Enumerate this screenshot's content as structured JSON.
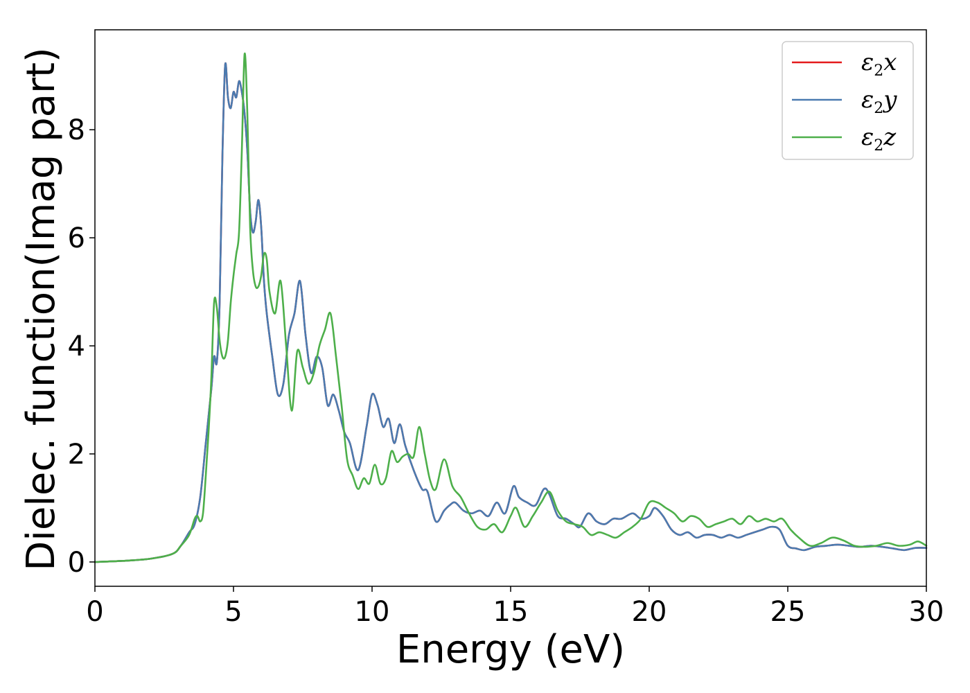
{
  "chart_data": {
    "type": "line",
    "xlabel": "Energy (eV)",
    "ylabel": "Dielec. function(Imag part)",
    "xlim": [
      0,
      30
    ],
    "ylim": [
      -0.45,
      9.85
    ],
    "x_ticks": [
      0,
      5,
      10,
      15,
      20,
      25,
      30
    ],
    "x_tick_labels": [
      "0",
      "5",
      "10",
      "15",
      "20",
      "25",
      "30"
    ],
    "y_ticks": [
      0,
      2,
      4,
      6,
      8
    ],
    "y_tick_labels": [
      "0",
      "2",
      "4",
      "6",
      "8"
    ],
    "grid": false,
    "legend_position": "top-right",
    "series": [
      {
        "name": "ε2x",
        "legend_base": "ε",
        "legend_sub": "2",
        "legend_tail": "x",
        "color": "#e41a1c",
        "x": [
          0,
          1,
          2,
          2.8,
          3.1,
          3.4,
          3.6,
          3.8,
          4.0,
          4.2,
          4.3,
          4.4,
          4.5,
          4.6,
          4.7,
          4.8,
          4.9,
          5.0,
          5.1,
          5.2,
          5.3,
          5.4,
          5.5,
          5.6,
          5.7,
          5.8,
          5.9,
          6.0,
          6.1,
          6.2,
          6.4,
          6.6,
          6.8,
          7.0,
          7.2,
          7.4,
          7.6,
          7.8,
          8.0,
          8.2,
          8.4,
          8.6,
          8.8,
          9.0,
          9.2,
          9.5,
          9.8,
          10.0,
          10.2,
          10.4,
          10.6,
          10.8,
          11.0,
          11.2,
          11.5,
          11.8,
          12.0,
          12.3,
          12.6,
          12.8,
          13.0,
          13.3,
          13.6,
          13.9,
          14.2,
          14.5,
          14.8,
          15.1,
          15.3,
          15.6,
          15.9,
          16.2,
          16.4,
          16.7,
          17.0,
          17.3,
          17.5,
          17.8,
          18.1,
          18.4,
          18.7,
          19.0,
          19.4,
          19.7,
          20.0,
          20.2,
          20.5,
          20.8,
          21.1,
          21.4,
          21.7,
          22.0,
          22.3,
          22.6,
          22.9,
          23.2,
          23.5,
          23.8,
          24.1,
          24.4,
          24.7,
          25.0,
          25.3,
          25.6,
          26.0,
          26.4,
          26.8,
          27.2,
          27.6,
          28.0,
          28.4,
          28.8,
          29.2,
          29.6,
          30.0
        ],
        "y": [
          0.0,
          0.02,
          0.06,
          0.15,
          0.3,
          0.55,
          0.7,
          1.2,
          2.2,
          3.2,
          3.8,
          3.7,
          4.8,
          7.5,
          9.2,
          8.6,
          8.4,
          8.7,
          8.6,
          8.9,
          8.7,
          8.3,
          7.6,
          6.5,
          6.1,
          6.3,
          6.7,
          6.2,
          5.2,
          4.6,
          3.8,
          3.1,
          3.3,
          4.2,
          4.6,
          5.2,
          4.2,
          3.5,
          3.8,
          3.6,
          2.9,
          3.1,
          2.8,
          2.4,
          2.2,
          1.7,
          2.5,
          3.1,
          2.9,
          2.5,
          2.65,
          2.2,
          2.55,
          2.15,
          1.7,
          1.35,
          1.3,
          0.75,
          0.95,
          1.05,
          1.1,
          0.95,
          0.9,
          0.95,
          0.85,
          1.1,
          0.9,
          1.4,
          1.2,
          1.1,
          1.05,
          1.35,
          1.25,
          0.85,
          0.8,
          0.7,
          0.65,
          0.9,
          0.75,
          0.7,
          0.8,
          0.8,
          0.9,
          0.8,
          0.85,
          1.0,
          0.85,
          0.6,
          0.5,
          0.55,
          0.45,
          0.5,
          0.5,
          0.45,
          0.5,
          0.45,
          0.5,
          0.55,
          0.6,
          0.65,
          0.6,
          0.3,
          0.25,
          0.22,
          0.28,
          0.3,
          0.32,
          0.3,
          0.28,
          0.3,
          0.28,
          0.25,
          0.22,
          0.26,
          0.26
        ]
      },
      {
        "name": "ε2y",
        "legend_base": "ε",
        "legend_sub": "2",
        "legend_tail": "y",
        "color": "#4a7bb0",
        "x": [
          0,
          1,
          2,
          2.8,
          3.1,
          3.4,
          3.6,
          3.8,
          4.0,
          4.2,
          4.3,
          4.4,
          4.5,
          4.6,
          4.7,
          4.8,
          4.9,
          5.0,
          5.1,
          5.2,
          5.3,
          5.4,
          5.5,
          5.6,
          5.7,
          5.8,
          5.9,
          6.0,
          6.1,
          6.2,
          6.4,
          6.6,
          6.8,
          7.0,
          7.2,
          7.4,
          7.6,
          7.8,
          8.0,
          8.2,
          8.4,
          8.6,
          8.8,
          9.0,
          9.2,
          9.5,
          9.8,
          10.0,
          10.2,
          10.4,
          10.6,
          10.8,
          11.0,
          11.2,
          11.5,
          11.8,
          12.0,
          12.3,
          12.6,
          12.8,
          13.0,
          13.3,
          13.6,
          13.9,
          14.2,
          14.5,
          14.8,
          15.1,
          15.3,
          15.6,
          15.9,
          16.2,
          16.4,
          16.7,
          17.0,
          17.3,
          17.5,
          17.8,
          18.1,
          18.4,
          18.7,
          19.0,
          19.4,
          19.7,
          20.0,
          20.2,
          20.5,
          20.8,
          21.1,
          21.4,
          21.7,
          22.0,
          22.3,
          22.6,
          22.9,
          23.2,
          23.5,
          23.8,
          24.1,
          24.4,
          24.7,
          25.0,
          25.3,
          25.6,
          26.0,
          26.4,
          26.8,
          27.2,
          27.6,
          28.0,
          28.4,
          28.8,
          29.2,
          29.6,
          30.0
        ],
        "y": [
          0.0,
          0.02,
          0.06,
          0.15,
          0.3,
          0.55,
          0.7,
          1.2,
          2.2,
          3.2,
          3.8,
          3.7,
          4.8,
          7.5,
          9.2,
          8.6,
          8.4,
          8.7,
          8.6,
          8.9,
          8.7,
          8.3,
          7.6,
          6.5,
          6.1,
          6.3,
          6.7,
          6.2,
          5.2,
          4.6,
          3.8,
          3.1,
          3.3,
          4.2,
          4.6,
          5.2,
          4.2,
          3.5,
          3.8,
          3.6,
          2.9,
          3.1,
          2.8,
          2.4,
          2.2,
          1.7,
          2.5,
          3.1,
          2.9,
          2.5,
          2.65,
          2.2,
          2.55,
          2.15,
          1.7,
          1.35,
          1.3,
          0.75,
          0.95,
          1.05,
          1.1,
          0.95,
          0.9,
          0.95,
          0.85,
          1.1,
          0.9,
          1.4,
          1.2,
          1.1,
          1.05,
          1.35,
          1.25,
          0.85,
          0.8,
          0.7,
          0.65,
          0.9,
          0.75,
          0.7,
          0.8,
          0.8,
          0.9,
          0.8,
          0.85,
          1.0,
          0.85,
          0.6,
          0.5,
          0.55,
          0.45,
          0.5,
          0.5,
          0.45,
          0.5,
          0.45,
          0.5,
          0.55,
          0.6,
          0.65,
          0.6,
          0.3,
          0.25,
          0.22,
          0.28,
          0.3,
          0.32,
          0.3,
          0.28,
          0.3,
          0.28,
          0.25,
          0.22,
          0.26,
          0.26
        ]
      },
      {
        "name": "ε2z",
        "legend_base": "ε",
        "legend_sub": "2",
        "legend_tail": "z",
        "color": "#4daf4a",
        "x": [
          0,
          1,
          2,
          2.8,
          3.1,
          3.4,
          3.6,
          3.7,
          3.8,
          3.9,
          4.0,
          4.1,
          4.2,
          4.3,
          4.4,
          4.5,
          4.6,
          4.7,
          4.8,
          4.9,
          5.0,
          5.1,
          5.2,
          5.3,
          5.4,
          5.5,
          5.6,
          5.7,
          5.8,
          5.9,
          6.0,
          6.1,
          6.2,
          6.3,
          6.5,
          6.7,
          6.9,
          7.1,
          7.3,
          7.5,
          7.7,
          7.9,
          8.1,
          8.3,
          8.5,
          8.7,
          8.9,
          9.1,
          9.3,
          9.5,
          9.7,
          9.9,
          10.1,
          10.3,
          10.5,
          10.7,
          10.9,
          11.1,
          11.3,
          11.5,
          11.7,
          11.9,
          12.1,
          12.3,
          12.6,
          12.9,
          13.2,
          13.5,
          13.8,
          14.1,
          14.4,
          14.7,
          15.0,
          15.2,
          15.5,
          15.8,
          16.1,
          16.4,
          16.7,
          17.0,
          17.3,
          17.6,
          17.9,
          18.2,
          18.5,
          18.8,
          19.1,
          19.4,
          19.7,
          20.0,
          20.3,
          20.6,
          20.9,
          21.2,
          21.5,
          21.8,
          22.1,
          22.4,
          22.7,
          23.0,
          23.3,
          23.6,
          23.9,
          24.2,
          24.5,
          24.8,
          25.1,
          25.4,
          25.8,
          26.2,
          26.6,
          27.0,
          27.4,
          27.8,
          28.2,
          28.6,
          29.0,
          29.4,
          29.7,
          30.0
        ],
        "y": [
          0.0,
          0.02,
          0.06,
          0.15,
          0.3,
          0.5,
          0.8,
          0.85,
          0.75,
          0.9,
          1.6,
          2.4,
          3.4,
          4.8,
          4.7,
          4.1,
          3.8,
          3.8,
          4.1,
          4.8,
          5.3,
          5.7,
          6.1,
          7.6,
          9.4,
          8.3,
          6.2,
          5.4,
          5.1,
          5.1,
          5.3,
          5.7,
          5.6,
          5.0,
          4.6,
          5.2,
          4.0,
          2.8,
          3.9,
          3.6,
          3.3,
          3.5,
          4.0,
          4.3,
          4.6,
          3.8,
          2.9,
          1.9,
          1.6,
          1.35,
          1.55,
          1.45,
          1.8,
          1.45,
          1.55,
          2.05,
          1.85,
          1.95,
          2.0,
          1.95,
          2.5,
          2.0,
          1.5,
          1.35,
          1.9,
          1.4,
          1.2,
          0.9,
          0.65,
          0.6,
          0.7,
          0.55,
          0.85,
          1.0,
          0.65,
          0.85,
          1.1,
          1.3,
          0.95,
          0.75,
          0.7,
          0.65,
          0.5,
          0.55,
          0.5,
          0.45,
          0.55,
          0.65,
          0.8,
          1.1,
          1.1,
          1.0,
          0.9,
          0.75,
          0.85,
          0.8,
          0.65,
          0.7,
          0.75,
          0.8,
          0.7,
          0.85,
          0.75,
          0.8,
          0.75,
          0.8,
          0.6,
          0.45,
          0.3,
          0.35,
          0.45,
          0.4,
          0.3,
          0.28,
          0.3,
          0.35,
          0.3,
          0.32,
          0.38,
          0.3
        ]
      }
    ]
  }
}
